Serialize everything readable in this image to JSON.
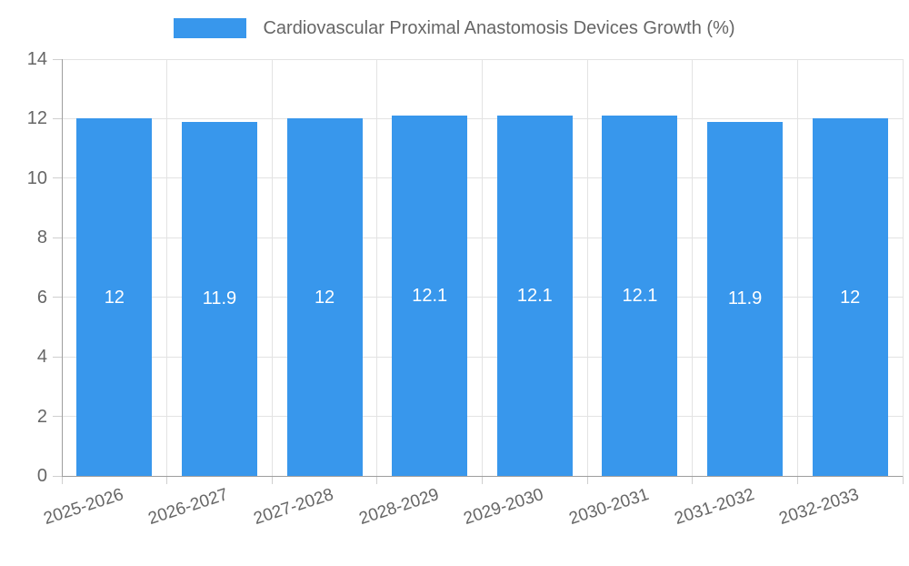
{
  "chart_data": {
    "type": "bar",
    "title": "Cardiovascular Proximal Anastomosis Devices Growth (%)",
    "categories": [
      "2025-2026",
      "2026-2027",
      "2027-2028",
      "2028-2029",
      "2029-2030",
      "2030-2031",
      "2031-2032",
      "2032-2033"
    ],
    "values": [
      12,
      11.9,
      12,
      12.1,
      12.1,
      12.1,
      11.9,
      12
    ],
    "value_labels": [
      "12",
      "11.9",
      "12",
      "12.1",
      "12.1",
      "12.1",
      "11.9",
      "12"
    ],
    "xlabel": "",
    "ylabel": "",
    "ylim": [
      0,
      14
    ],
    "y_ticks": [
      0,
      2,
      4,
      6,
      8,
      10,
      12,
      14
    ],
    "grid": true,
    "legend_position": "top",
    "colors": {
      "bar": "#3897EC",
      "bar_value_label": "#FFFFFF",
      "axis_text": "#666666",
      "gridline": "#E3E3E3",
      "axis_line": "#9E9E9E",
      "tick_mark": "#CFCFCF",
      "background": "#FFFFFF"
    }
  }
}
